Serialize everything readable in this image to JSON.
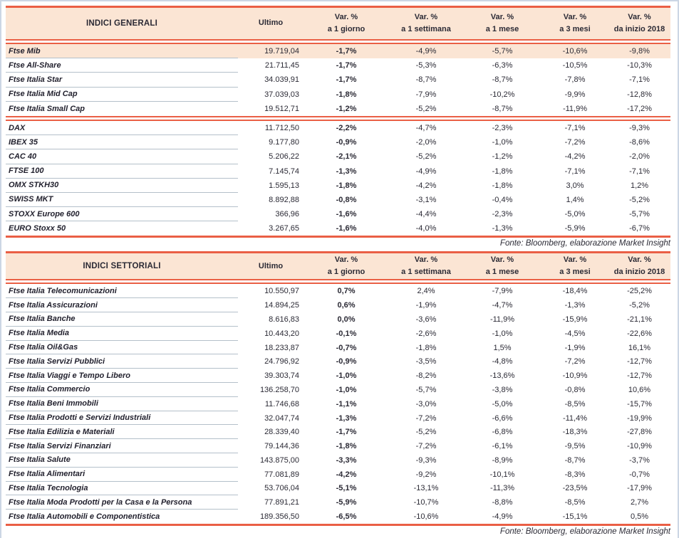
{
  "columns": [
    {
      "line1": "Ultimo",
      "line2": ""
    },
    {
      "line1": "Var. %",
      "line2": "a 1 giorno"
    },
    {
      "line1": "Var. %",
      "line2": "a 1 settimana"
    },
    {
      "line1": "Var. %",
      "line2": "a 1 mese"
    },
    {
      "line1": "Var. %",
      "line2": "a 3 mesi"
    },
    {
      "line1": "Var. %",
      "line2": "da inizio 2018"
    }
  ],
  "colors": {
    "accent_red": "#ea5f45",
    "header_peach": "#fbe5d4",
    "text": "#2b2a35",
    "row_divider": "#b4c0ca",
    "page_border": "#ccd6e4"
  },
  "tables": [
    {
      "title": "INDICI GENERALI",
      "fonte": "Fonte: Bloomberg, elaborazione Market Insight",
      "groups": [
        {
          "rows": [
            {
              "label": "Ftse Mib",
              "highlight": true,
              "values": [
                "19.719,04",
                "-1,7%",
                "-4,9%",
                "-5,7%",
                "-10,6%",
                "-9,8%"
              ]
            },
            {
              "label": "Ftse All-Share",
              "values": [
                "21.711,45",
                "-1,7%",
                "-5,3%",
                "-6,3%",
                "-10,5%",
                "-10,3%"
              ]
            },
            {
              "label": "Ftse Italia Star",
              "values": [
                "34.039,91",
                "-1,7%",
                "-8,7%",
                "-8,7%",
                "-7,8%",
                "-7,1%"
              ]
            },
            {
              "label": "Ftse Italia Mid Cap",
              "values": [
                "37.039,03",
                "-1,8%",
                "-7,9%",
                "-10,2%",
                "-9,9%",
                "-12,8%"
              ]
            },
            {
              "label": "Ftse Italia Small Cap",
              "values": [
                "19.512,71",
                "-1,2%",
                "-5,2%",
                "-8,7%",
                "-11,9%",
                "-17,2%"
              ]
            }
          ]
        },
        {
          "rows": [
            {
              "label": "DAX",
              "values": [
                "11.712,50",
                "-2,2%",
                "-4,7%",
                "-2,3%",
                "-7,1%",
                "-9,3%"
              ]
            },
            {
              "label": "IBEX 35",
              "values": [
                "9.177,80",
                "-0,9%",
                "-2,0%",
                "-1,0%",
                "-7,2%",
                "-8,6%"
              ]
            },
            {
              "label": "CAC 40",
              "values": [
                "5.206,22",
                "-2,1%",
                "-5,2%",
                "-1,2%",
                "-4,2%",
                "-2,0%"
              ]
            },
            {
              "label": "FTSE 100",
              "values": [
                "7.145,74",
                "-1,3%",
                "-4,9%",
                "-1,8%",
                "-7,1%",
                "-7,1%"
              ]
            },
            {
              "label": "OMX STKH30",
              "values": [
                "1.595,13",
                "-1,8%",
                "-4,2%",
                "-1,8%",
                "3,0%",
                "1,2%"
              ]
            },
            {
              "label": "SWISS MKT",
              "values": [
                "8.892,88",
                "-0,8%",
                "-3,1%",
                "-0,4%",
                "1,4%",
                "-5,2%"
              ]
            },
            {
              "label": "STOXX Europe 600",
              "values": [
                "366,96",
                "-1,6%",
                "-4,4%",
                "-2,3%",
                "-5,0%",
                "-5,7%"
              ]
            },
            {
              "label": "EURO Stoxx 50",
              "values": [
                "3.267,65",
                "-1,6%",
                "-4,0%",
                "-1,3%",
                "-5,9%",
                "-6,7%"
              ]
            }
          ]
        }
      ]
    },
    {
      "title": "INDICI SETTORIALI",
      "fonte": "Fonte: Bloomberg, elaborazione Market Insight",
      "groups": [
        {
          "rows": [
            {
              "label": "Ftse Italia Telecomunicazioni",
              "values": [
                "10.550,97",
                "0,7%",
                "2,4%",
                "-7,9%",
                "-18,4%",
                "-25,2%"
              ]
            },
            {
              "label": "Ftse Italia Assicurazioni",
              "values": [
                "14.894,25",
                "0,6%",
                "-1,9%",
                "-4,7%",
                "-1,3%",
                "-5,2%"
              ]
            },
            {
              "label": "Ftse Italia Banche",
              "values": [
                "8.616,83",
                "0,0%",
                "-3,6%",
                "-11,9%",
                "-15,9%",
                "-21,1%"
              ]
            },
            {
              "label": "Ftse Italia Media",
              "values": [
                "10.443,20",
                "-0,1%",
                "-2,6%",
                "-1,0%",
                "-4,5%",
                "-22,6%"
              ]
            },
            {
              "label": "Ftse Italia Oil&Gas",
              "values": [
                "18.233,87",
                "-0,7%",
                "-1,8%",
                "1,5%",
                "-1,9%",
                "16,1%"
              ]
            },
            {
              "label": "Ftse Italia Servizi Pubblici",
              "values": [
                "24.796,92",
                "-0,9%",
                "-3,5%",
                "-4,8%",
                "-7,2%",
                "-12,7%"
              ]
            },
            {
              "label": "Ftse Italia Viaggi e Tempo Libero",
              "values": [
                "39.303,74",
                "-1,0%",
                "-8,2%",
                "-13,6%",
                "-10,9%",
                "-12,7%"
              ]
            },
            {
              "label": "Ftse Italia Commercio",
              "values": [
                "136.258,70",
                "-1,0%",
                "-5,7%",
                "-3,8%",
                "-0,8%",
                "10,6%"
              ]
            },
            {
              "label": "Ftse Italia Beni Immobili",
              "values": [
                "11.746,68",
                "-1,1%",
                "-3,0%",
                "-5,0%",
                "-8,5%",
                "-15,7%"
              ]
            },
            {
              "label": "Ftse Italia Prodotti e Servizi Industriali",
              "values": [
                "32.047,74",
                "-1,3%",
                "-7,2%",
                "-6,6%",
                "-11,4%",
                "-19,9%"
              ]
            },
            {
              "label": "Ftse Italia Edilizia e Materiali",
              "values": [
                "28.339,40",
                "-1,7%",
                "-5,2%",
                "-6,8%",
                "-18,3%",
                "-27,8%"
              ]
            },
            {
              "label": "Ftse Italia Servizi Finanziari",
              "values": [
                "79.144,36",
                "-1,8%",
                "-7,2%",
                "-6,1%",
                "-9,5%",
                "-10,9%"
              ]
            },
            {
              "label": "Ftse Italia Salute",
              "values": [
                "143.875,00",
                "-3,3%",
                "-9,3%",
                "-8,9%",
                "-8,7%",
                "-3,7%"
              ]
            },
            {
              "label": "Ftse Italia Alimentari",
              "values": [
                "77.081,89",
                "-4,2%",
                "-9,2%",
                "-10,1%",
                "-8,3%",
                "-0,7%"
              ]
            },
            {
              "label": "Ftse Italia Tecnologia",
              "values": [
                "53.706,04",
                "-5,1%",
                "-13,1%",
                "-11,3%",
                "-23,5%",
                "-17,9%"
              ]
            },
            {
              "label": "Ftse Italia Moda Prodotti per la Casa e la Persona",
              "values": [
                "77.891,21",
                "-5,9%",
                "-10,7%",
                "-8,8%",
                "-8,5%",
                "2,7%"
              ]
            },
            {
              "label": "Ftse Italia Automobili e Componentistica",
              "values": [
                "189.356,50",
                "-6,5%",
                "-10,6%",
                "-4,9%",
                "-15,1%",
                "0,5%"
              ]
            }
          ]
        }
      ]
    }
  ]
}
